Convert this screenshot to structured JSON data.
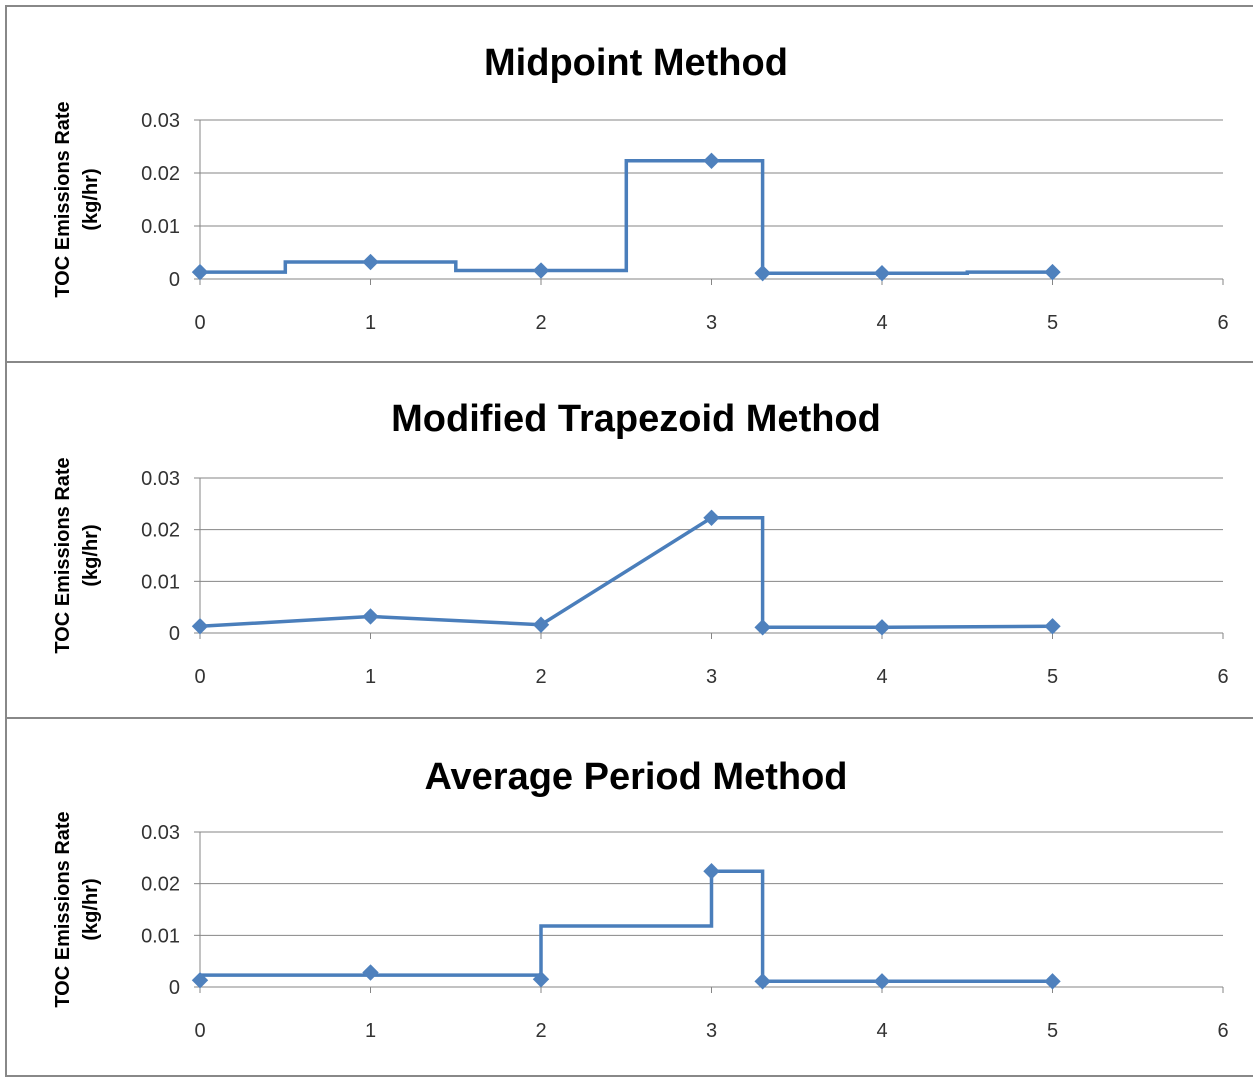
{
  "chart_data": [
    {
      "type": "line",
      "title": "Midpoint Method",
      "ylabel_line1": "TOC Emissions Rate",
      "ylabel_line2": "(kg/hr)",
      "xlabel": "",
      "xlim": [
        0,
        6
      ],
      "ylim": [
        0,
        0.03
      ],
      "x_ticks": [
        0,
        1,
        2,
        3,
        4,
        5,
        6
      ],
      "y_ticks": [
        0,
        0.01,
        0.02,
        0.03
      ],
      "y_tick_labels": [
        "0",
        "0.01",
        "0.02",
        "0.03"
      ],
      "grid": true,
      "color": "#4a7ebb",
      "marker_color": "#4f81bd",
      "points": [
        [
          0,
          0.0013
        ],
        [
          1,
          0.0032
        ],
        [
          2,
          0.0016
        ],
        [
          3,
          0.0223
        ],
        [
          3.3,
          0.0011
        ],
        [
          4,
          0.0011
        ],
        [
          5,
          0.0013
        ]
      ],
      "line": [
        [
          0,
          0.0013
        ],
        [
          0.5,
          0.0013
        ],
        [
          0.5,
          0.0032
        ],
        [
          1.5,
          0.0032
        ],
        [
          1.5,
          0.0016
        ],
        [
          2.5,
          0.0016
        ],
        [
          2.5,
          0.0223
        ],
        [
          3.3,
          0.0223
        ],
        [
          3.3,
          0.0011
        ],
        [
          4.5,
          0.0011
        ],
        [
          4.5,
          0.0013
        ],
        [
          5,
          0.0013
        ]
      ]
    },
    {
      "type": "line",
      "title": "Modified Trapezoid Method",
      "ylabel_line1": "TOC Emissions Rate",
      "ylabel_line2": "(kg/hr)",
      "xlabel": "",
      "xlim": [
        0,
        6
      ],
      "ylim": [
        0,
        0.03
      ],
      "x_ticks": [
        0,
        1,
        2,
        3,
        4,
        5,
        6
      ],
      "y_ticks": [
        0,
        0.01,
        0.02,
        0.03
      ],
      "y_tick_labels": [
        "0",
        "0.01",
        "0.02",
        "0.03"
      ],
      "grid": true,
      "color": "#4a7ebb",
      "marker_color": "#4f81bd",
      "points": [
        [
          0,
          0.0013
        ],
        [
          1,
          0.0032
        ],
        [
          2,
          0.0016
        ],
        [
          3,
          0.0223
        ],
        [
          3.3,
          0.0011
        ],
        [
          4,
          0.0011
        ],
        [
          5,
          0.0013
        ]
      ],
      "line": [
        [
          0,
          0.0013
        ],
        [
          1,
          0.0032
        ],
        [
          2,
          0.0016
        ],
        [
          3,
          0.0223
        ],
        [
          3.3,
          0.0223
        ],
        [
          3.3,
          0.0011
        ],
        [
          4,
          0.0011
        ],
        [
          5,
          0.0013
        ]
      ]
    },
    {
      "type": "line",
      "title": "Average Period Method",
      "ylabel_line1": "TOC Emissions Rate",
      "ylabel_line2": "(kg/hr)",
      "xlabel": "",
      "xlim": [
        0,
        6
      ],
      "ylim": [
        0,
        0.03
      ],
      "x_ticks": [
        0,
        1,
        2,
        3,
        4,
        5,
        6
      ],
      "y_ticks": [
        0,
        0.01,
        0.02,
        0.03
      ],
      "y_tick_labels": [
        "0",
        "0.01",
        "0.02",
        "0.03"
      ],
      "grid": true,
      "color": "#4a7ebb",
      "marker_color": "#4f81bd",
      "points": [
        [
          0,
          0.0013
        ],
        [
          1,
          0.0028
        ],
        [
          2,
          0.0015
        ],
        [
          3,
          0.0224
        ],
        [
          3.3,
          0.0011
        ],
        [
          4,
          0.0011
        ],
        [
          5,
          0.0011
        ]
      ],
      "line": [
        [
          0,
          0.0023
        ],
        [
          2,
          0.0023
        ],
        [
          2,
          0.0118
        ],
        [
          3,
          0.0118
        ],
        [
          3,
          0.0224
        ],
        [
          3.3,
          0.0224
        ],
        [
          3.3,
          0.0011
        ],
        [
          5,
          0.0011
        ]
      ]
    }
  ]
}
